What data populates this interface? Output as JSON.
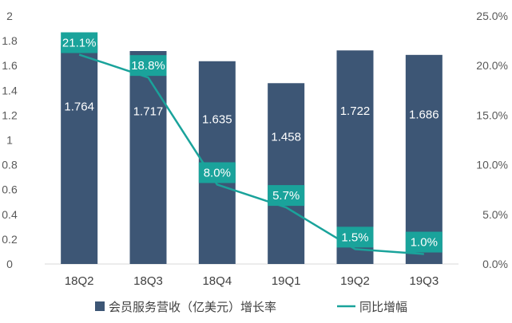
{
  "chart_data": {
    "type": "bar",
    "categories": [
      "18Q2",
      "18Q3",
      "18Q4",
      "19Q1",
      "19Q2",
      "19Q3"
    ],
    "series": [
      {
        "name": "会员服务营收（亿美元）增长率",
        "type": "bar",
        "axis": "left",
        "values": [
          1.764,
          1.717,
          1.635,
          1.458,
          1.722,
          1.686
        ],
        "labels": [
          "1.764",
          "1.717",
          "1.635",
          "1.458",
          "1.722",
          "1.686"
        ],
        "color": "#3d5675"
      },
      {
        "name": "同比增幅",
        "type": "line",
        "axis": "right",
        "values": [
          21.1,
          18.8,
          8.0,
          5.7,
          1.5,
          1.0
        ],
        "labels": [
          "21.1%",
          "18.8%",
          "8.0%",
          "5.7%",
          "1.5%",
          "1.0%"
        ],
        "color": "#1aa39b"
      }
    ],
    "ylim_left": [
      0,
      2
    ],
    "yticks_left": [
      "0",
      "0.2",
      "0.4",
      "0.6",
      "0.8",
      "1",
      "1.2",
      "1.4",
      "1.6",
      "1.8",
      "2"
    ],
    "ylim_right": [
      0,
      25
    ],
    "yticks_right": [
      "0.0%",
      "5.0%",
      "10.0%",
      "15.0%",
      "20.0%",
      "25.0%"
    ],
    "grid": false,
    "legend_position": "bottom"
  }
}
